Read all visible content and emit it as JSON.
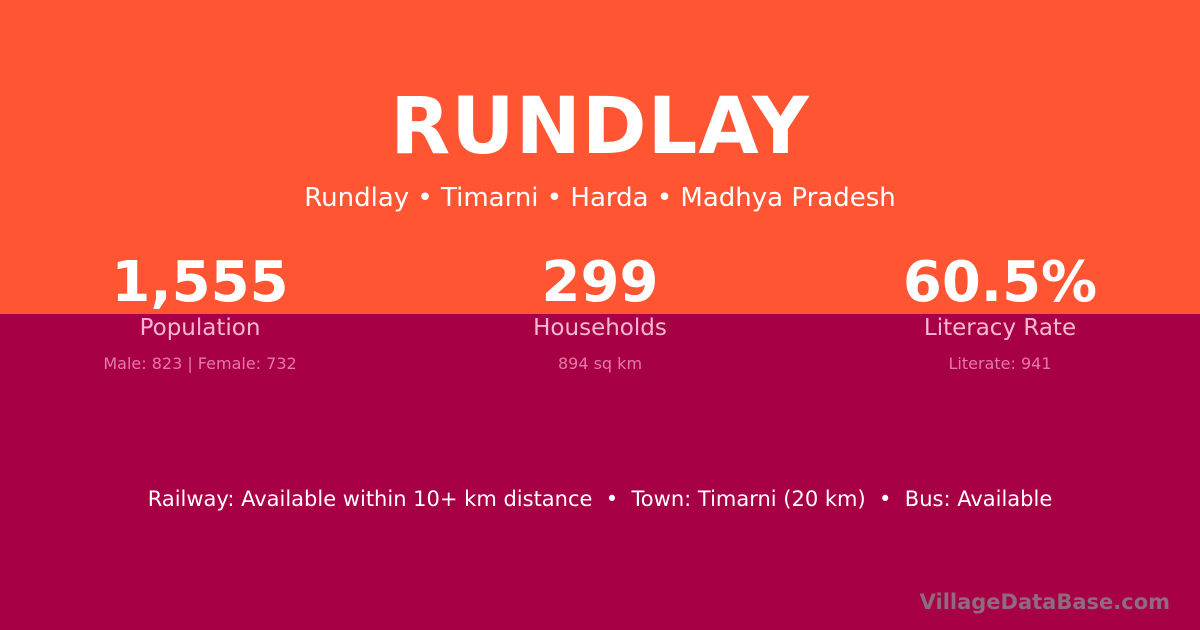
{
  "colors": {
    "top": "#ff5533",
    "bottom": "#a80044"
  },
  "title": "RUNDLAY",
  "subtitle": "Rundlay • Timarni • Harda • Madhya Pradesh",
  "stats": [
    {
      "value": "1,555",
      "label": "Population",
      "detail": "Male: 823 | Female: 732"
    },
    {
      "value": "299",
      "label": "Households",
      "detail": "894 sq km"
    },
    {
      "value": "60.5%",
      "label": "Literacy Rate",
      "detail": "Literate: 941"
    }
  ],
  "info": "Railway: Available within 10+ km distance  •  Town: Timarni (20 km)  •  Bus: Available",
  "brand": "VillageDataBase.com"
}
